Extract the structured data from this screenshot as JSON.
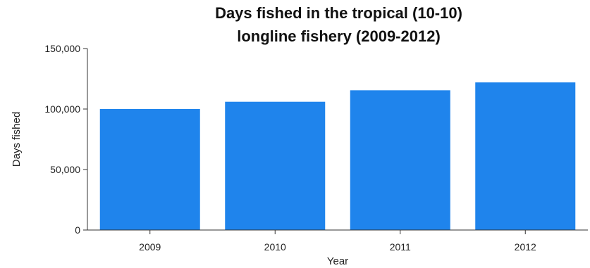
{
  "chart_data": {
    "type": "bar",
    "title_lines": [
      "Days fished in the tropical (10-10)",
      "longline fishery (2009-2012)"
    ],
    "xlabel": "Year",
    "ylabel": "Days fished",
    "categories": [
      "2009",
      "2010",
      "2011",
      "2012"
    ],
    "values": [
      100000,
      106000,
      115500,
      122000
    ],
    "ylim": [
      0,
      150000
    ],
    "yticks": [
      0,
      50000,
      100000,
      150000
    ],
    "ytick_labels": [
      "0",
      "50,000",
      "100,000",
      "150,000"
    ],
    "bar_color": "#1f84ec",
    "grid": false,
    "legend": "none"
  }
}
